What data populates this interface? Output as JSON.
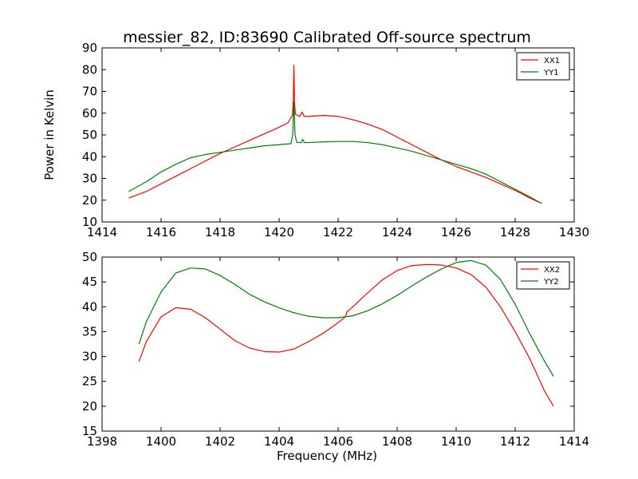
{
  "chart_data": [
    {
      "type": "line",
      "title": "messier_82, ID:83690 Calibrated Off-source spectrum",
      "xlabel": "",
      "ylabel": "Power in Kelvin",
      "xlim": [
        1414,
        1430
      ],
      "ylim": [
        10,
        90
      ],
      "xticks": [
        1414,
        1416,
        1418,
        1420,
        1422,
        1424,
        1426,
        1428,
        1430
      ],
      "yticks": [
        10,
        20,
        30,
        40,
        50,
        60,
        70,
        80,
        90
      ],
      "legend_position": "top-right",
      "series": [
        {
          "name": "XX1",
          "color": "#ff0000",
          "points": [
            [
              1414.9,
              21
            ],
            [
              1415.5,
              24
            ],
            [
              1416,
              27.5
            ],
            [
              1416.5,
              31
            ],
            [
              1417,
              34.5
            ],
            [
              1417.5,
              38
            ],
            [
              1418,
              41.5
            ],
            [
              1418.5,
              44.5
            ],
            [
              1419,
              47.5
            ],
            [
              1419.5,
              50.5
            ],
            [
              1420,
              53.5
            ],
            [
              1420.3,
              55.5
            ],
            [
              1420.45,
              59
            ],
            [
              1420.48,
              66
            ],
            [
              1420.5,
              82
            ],
            [
              1420.52,
              66
            ],
            [
              1420.55,
              59.5
            ],
            [
              1420.7,
              58.5
            ],
            [
              1420.78,
              60.5
            ],
            [
              1420.85,
              58.5
            ],
            [
              1421,
              58.5
            ],
            [
              1421.5,
              59
            ],
            [
              1422,
              58.5
            ],
            [
              1422.5,
              57
            ],
            [
              1423,
              55
            ],
            [
              1423.5,
              52.5
            ],
            [
              1424,
              49
            ],
            [
              1424.5,
              45.5
            ],
            [
              1425,
              42
            ],
            [
              1425.5,
              38.5
            ],
            [
              1426,
              35.5
            ],
            [
              1426.5,
              33
            ],
            [
              1427,
              30.5
            ],
            [
              1427.5,
              27.5
            ],
            [
              1428,
              24.5
            ],
            [
              1428.5,
              21
            ],
            [
              1428.9,
              18.5
            ]
          ]
        },
        {
          "name": "YY1",
          "color": "#008000",
          "points": [
            [
              1414.9,
              24
            ],
            [
              1415.5,
              28.5
            ],
            [
              1416,
              33
            ],
            [
              1416.5,
              36.5
            ],
            [
              1417,
              39.5
            ],
            [
              1417.5,
              41
            ],
            [
              1418,
              42
            ],
            [
              1418.5,
              43
            ],
            [
              1419,
              44
            ],
            [
              1419.5,
              45
            ],
            [
              1420,
              45.5
            ],
            [
              1420.4,
              46
            ],
            [
              1420.46,
              50
            ],
            [
              1420.5,
              65
            ],
            [
              1420.54,
              50
            ],
            [
              1420.6,
              46.5
            ],
            [
              1420.75,
              46.5
            ],
            [
              1420.8,
              48
            ],
            [
              1420.85,
              46.5
            ],
            [
              1421,
              46.5
            ],
            [
              1421.5,
              46.8
            ],
            [
              1422,
              47
            ],
            [
              1422.5,
              47
            ],
            [
              1423,
              46.5
            ],
            [
              1423.5,
              45.5
            ],
            [
              1424,
              44
            ],
            [
              1424.5,
              42.5
            ],
            [
              1425,
              40.5
            ],
            [
              1425.5,
              38.5
            ],
            [
              1426,
              36.5
            ],
            [
              1426.5,
              34.5
            ],
            [
              1427,
              32
            ],
            [
              1427.5,
              28.5
            ],
            [
              1428,
              25
            ],
            [
              1428.5,
              21.5
            ],
            [
              1428.9,
              18.5
            ]
          ]
        }
      ]
    },
    {
      "type": "line",
      "title": "",
      "xlabel": "Frequency (MHz)",
      "ylabel": "",
      "xlim": [
        1398,
        1414
      ],
      "ylim": [
        15,
        50
      ],
      "xticks": [
        1398,
        1400,
        1402,
        1404,
        1406,
        1408,
        1410,
        1412,
        1414
      ],
      "yticks": [
        15,
        20,
        25,
        30,
        35,
        40,
        45,
        50
      ],
      "legend_position": "top-right",
      "series": [
        {
          "name": "XX2",
          "color": "#ff0000",
          "points": [
            [
              1399.25,
              29
            ],
            [
              1399.5,
              33
            ],
            [
              1400,
              38
            ],
            [
              1400.5,
              39.8
            ],
            [
              1401,
              39.5
            ],
            [
              1401.5,
              37.8
            ],
            [
              1402,
              35.5
            ],
            [
              1402.5,
              33.2
            ],
            [
              1403,
              31.7
            ],
            [
              1403.5,
              31
            ],
            [
              1404,
              30.9
            ],
            [
              1404.5,
              31.5
            ],
            [
              1405,
              33
            ],
            [
              1405.5,
              34.7
            ],
            [
              1406,
              36.8
            ],
            [
              1406.25,
              38
            ],
            [
              1406.3,
              39
            ],
            [
              1406.5,
              40
            ],
            [
              1407,
              42.8
            ],
            [
              1407.5,
              45.4
            ],
            [
              1408,
              47.3
            ],
            [
              1408.5,
              48.3
            ],
            [
              1409,
              48.5
            ],
            [
              1409.5,
              48.4
            ],
            [
              1410,
              47.8
            ],
            [
              1410.5,
              46.5
            ],
            [
              1411,
              44
            ],
            [
              1411.5,
              40
            ],
            [
              1412,
              35
            ],
            [
              1412.5,
              29.5
            ],
            [
              1413,
              23
            ],
            [
              1413.3,
              20
            ]
          ]
        },
        {
          "name": "YY2",
          "color": "#008000",
          "points": [
            [
              1399.25,
              32.5
            ],
            [
              1399.5,
              37
            ],
            [
              1400,
              43
            ],
            [
              1400.5,
              46.8
            ],
            [
              1401,
              47.8
            ],
            [
              1401.5,
              47.6
            ],
            [
              1402,
              46.3
            ],
            [
              1402.5,
              44.5
            ],
            [
              1403,
              42.5
            ],
            [
              1403.5,
              41
            ],
            [
              1404,
              39.8
            ],
            [
              1404.5,
              38.8
            ],
            [
              1405,
              38.1
            ],
            [
              1405.5,
              37.8
            ],
            [
              1406,
              37.8
            ],
            [
              1406.5,
              38.2
            ],
            [
              1407,
              39.2
            ],
            [
              1407.5,
              40.6
            ],
            [
              1408,
              42.3
            ],
            [
              1408.5,
              44.2
            ],
            [
              1409,
              46
            ],
            [
              1409.5,
              47.6
            ],
            [
              1410,
              48.9
            ],
            [
              1410.5,
              49.3
            ],
            [
              1411,
              48.4
            ],
            [
              1411.5,
              45.5
            ],
            [
              1412,
              40.5
            ],
            [
              1412.5,
              34.5
            ],
            [
              1413,
              29
            ],
            [
              1413.3,
              26
            ]
          ]
        }
      ]
    }
  ]
}
